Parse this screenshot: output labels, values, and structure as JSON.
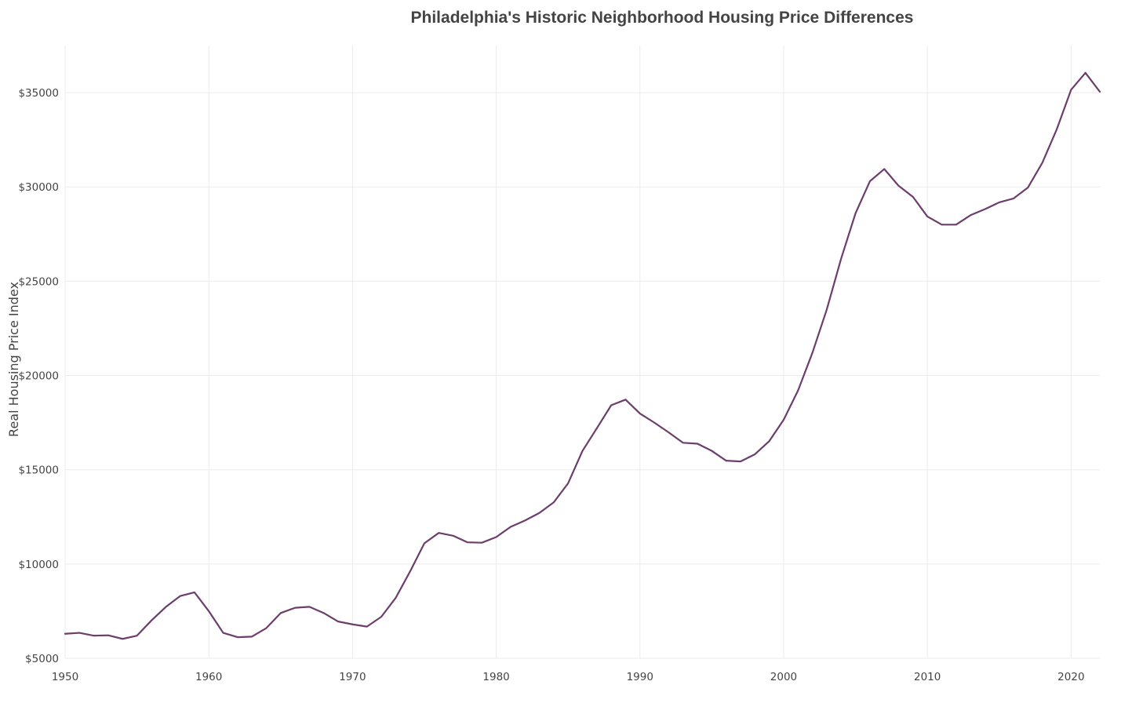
{
  "chart_data": {
    "type": "line",
    "title": "Philadelphia's Historic Neighborhood Housing Price Differences",
    "xlabel": "",
    "ylabel": "Real Housing Price Index",
    "xlim": [
      1950,
      2022
    ],
    "ylim": [
      5000,
      37500
    ],
    "grid": true,
    "legend": "none",
    "x_ticks": [
      {
        "value": 1950,
        "label": "1950"
      },
      {
        "value": 1960,
        "label": "1960"
      },
      {
        "value": 1970,
        "label": "1970"
      },
      {
        "value": 1980,
        "label": "1980"
      },
      {
        "value": 1990,
        "label": "1990"
      },
      {
        "value": 2000,
        "label": "2000"
      },
      {
        "value": 2010,
        "label": "2010"
      },
      {
        "value": 2020,
        "label": "2020"
      }
    ],
    "y_ticks": [
      {
        "value": 5000,
        "label": "$5000"
      },
      {
        "value": 10000,
        "label": "$10000"
      },
      {
        "value": 15000,
        "label": "$15000"
      },
      {
        "value": 20000,
        "label": "$20000"
      },
      {
        "value": 25000,
        "label": "$25000"
      },
      {
        "value": 30000,
        "label": "$30000"
      },
      {
        "value": 35000,
        "label": "$35000"
      }
    ],
    "series": [
      {
        "color": "#6b3e6b",
        "x": [
          1950,
          1951,
          1952,
          1953,
          1954,
          1955,
          1956,
          1957,
          1958,
          1959,
          1960,
          1961,
          1962,
          1963,
          1964,
          1965,
          1966,
          1967,
          1968,
          1969,
          1970,
          1971,
          1972,
          1973,
          1974,
          1975,
          1976,
          1977,
          1978,
          1979,
          1980,
          1981,
          1982,
          1983,
          1984,
          1985,
          1986,
          1987,
          1988,
          1989,
          1990,
          1991,
          1992,
          1993,
          1994,
          1995,
          1996,
          1997,
          1998,
          1999,
          2000,
          2001,
          2002,
          2003,
          2004,
          2005,
          2006,
          2007,
          2008,
          2009,
          2010,
          2011,
          2012,
          2013,
          2014,
          2015,
          2016,
          2017,
          2018,
          2019,
          2020,
          2021,
          2022
        ],
        "values": [
          6300,
          6350,
          6200,
          6220,
          6030,
          6200,
          7000,
          7720,
          8300,
          8500,
          7500,
          6350,
          6120,
          6150,
          6600,
          7400,
          7680,
          7730,
          7400,
          6950,
          6800,
          6680,
          7200,
          8200,
          9600,
          11100,
          11650,
          11500,
          11150,
          11130,
          11430,
          11970,
          12310,
          12710,
          13270,
          14280,
          16000,
          17200,
          18420,
          18720,
          17980,
          17500,
          16980,
          16430,
          16380,
          16000,
          15480,
          15440,
          15820,
          16520,
          17650,
          19200,
          21200,
          23500,
          26200,
          28600,
          30300,
          30950,
          30060,
          29470,
          28430,
          28000,
          28000,
          28500,
          28820,
          29180,
          29390,
          29970,
          31280,
          33050,
          35150,
          36050,
          35050
        ]
      }
    ]
  }
}
